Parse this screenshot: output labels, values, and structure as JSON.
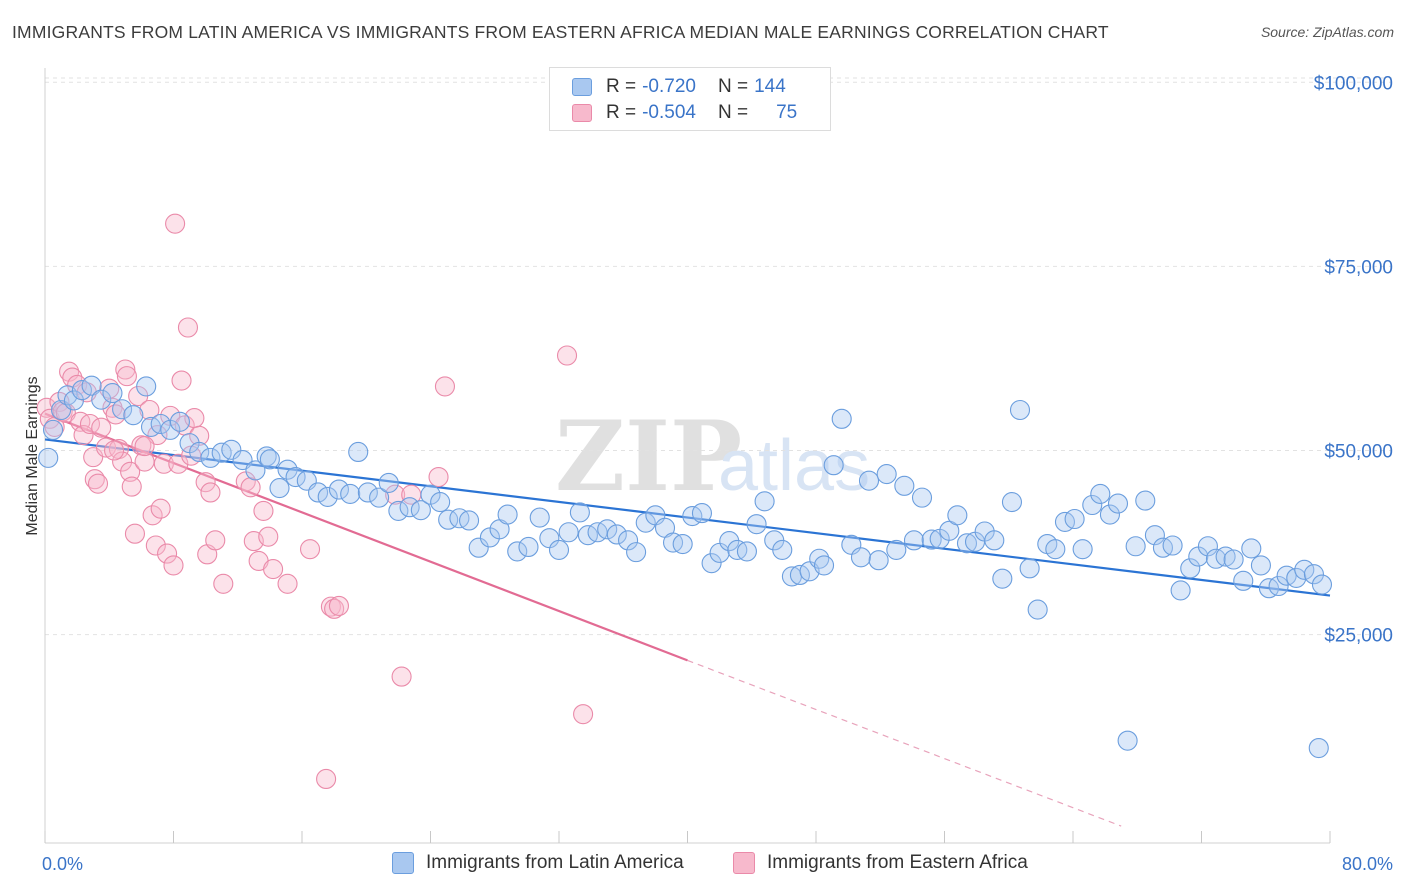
{
  "header": {
    "title": "IMMIGRANTS FROM LATIN AMERICA VS IMMIGRANTS FROM EASTERN AFRICA MEDIAN MALE EARNINGS CORRELATION CHART",
    "source": "Source: ZipAtlas.com"
  },
  "watermark": {
    "zip": "ZIP",
    "atlas": "atlas"
  },
  "legend": {
    "rows": [
      {
        "r_label": "R =",
        "r_value": "-0.720",
        "n_label": "N =",
        "n_value": "144",
        "color": "#a9c8f0",
        "border": "#6b9ede"
      },
      {
        "r_label": "R =",
        "r_value": "-0.504",
        "n_label": "N =",
        "n_value": "75",
        "color": "#f7b9cc",
        "border": "#ea8aa9"
      }
    ]
  },
  "bottom_legend": {
    "items": [
      {
        "label": "Immigrants from Latin America",
        "color": "#a9c8f0",
        "border": "#6b9ede"
      },
      {
        "label": "Immigrants from Eastern Africa",
        "color": "#f7b9cc",
        "border": "#ea8aa9"
      }
    ]
  },
  "chart_data": {
    "type": "scatter",
    "title": "IMMIGRANTS FROM LATIN AMERICA VS IMMIGRANTS FROM EASTERN AFRICA MEDIAN MALE EARNINGS CORRELATION CHART",
    "xlabel": "",
    "ylabel": "Median Male Earnings",
    "xlim": [
      0,
      80
    ],
    "ylim": [
      0,
      105000
    ],
    "x_tick_labels": [
      "0.0%",
      "80.0%"
    ],
    "y_ticks": [
      25000,
      50000,
      75000,
      100000
    ],
    "y_tick_labels": [
      "$25,000",
      "$50,000",
      "$75,000",
      "$100,000"
    ],
    "grid": true,
    "legend_position": "top-center",
    "series": [
      {
        "name": "Immigrants from Latin America",
        "color": "#6b9ede",
        "fill": "#a9c8f0",
        "r": -0.72,
        "n": 144,
        "trend": {
          "x": [
            0,
            80
          ],
          "y": [
            51500,
            30300
          ]
        },
        "points": [
          [
            0.2,
            49000
          ],
          [
            0.5,
            52800
          ],
          [
            1.0,
            55500
          ],
          [
            1.4,
            57500
          ],
          [
            1.8,
            56800
          ],
          [
            2.3,
            58200
          ],
          [
            2.9,
            58800
          ],
          [
            3.5,
            56900
          ],
          [
            4.2,
            57800
          ],
          [
            4.8,
            55600
          ],
          [
            5.5,
            54800
          ],
          [
            6.3,
            58700
          ],
          [
            6.6,
            53200
          ],
          [
            7.2,
            53600
          ],
          [
            7.8,
            52800
          ],
          [
            8.4,
            53900
          ],
          [
            9.0,
            51000
          ],
          [
            9.6,
            49800
          ],
          [
            10.3,
            49000
          ],
          [
            11.0,
            49700
          ],
          [
            11.6,
            50100
          ],
          [
            12.3,
            48700
          ],
          [
            13.1,
            47300
          ],
          [
            13.8,
            49200
          ],
          [
            14.0,
            48800
          ],
          [
            14.6,
            44900
          ],
          [
            15.1,
            47400
          ],
          [
            15.6,
            46400
          ],
          [
            16.3,
            45900
          ],
          [
            17.0,
            44300
          ],
          [
            17.6,
            43700
          ],
          [
            18.3,
            44700
          ],
          [
            19.0,
            44100
          ],
          [
            19.5,
            49800
          ],
          [
            20.1,
            44300
          ],
          [
            20.8,
            43600
          ],
          [
            21.4,
            45600
          ],
          [
            22.0,
            41800
          ],
          [
            22.7,
            42300
          ],
          [
            23.4,
            41900
          ],
          [
            24.0,
            44000
          ],
          [
            24.6,
            43000
          ],
          [
            25.1,
            40600
          ],
          [
            25.8,
            40800
          ],
          [
            26.4,
            40500
          ],
          [
            27.0,
            36800
          ],
          [
            27.7,
            38200
          ],
          [
            28.3,
            39300
          ],
          [
            28.8,
            41300
          ],
          [
            29.4,
            36300
          ],
          [
            30.1,
            36900
          ],
          [
            30.8,
            40900
          ],
          [
            31.4,
            38100
          ],
          [
            32.0,
            36500
          ],
          [
            32.6,
            38900
          ],
          [
            33.3,
            41600
          ],
          [
            33.8,
            38500
          ],
          [
            34.4,
            38900
          ],
          [
            35.0,
            39300
          ],
          [
            35.6,
            38600
          ],
          [
            36.3,
            37800
          ],
          [
            36.8,
            36200
          ],
          [
            37.4,
            40200
          ],
          [
            38.0,
            41200
          ],
          [
            38.6,
            39500
          ],
          [
            39.1,
            37500
          ],
          [
            39.7,
            37300
          ],
          [
            40.3,
            41100
          ],
          [
            40.9,
            41500
          ],
          [
            41.5,
            34700
          ],
          [
            42.0,
            36100
          ],
          [
            42.6,
            37700
          ],
          [
            43.1,
            36500
          ],
          [
            43.7,
            36300
          ],
          [
            44.3,
            40000
          ],
          [
            44.8,
            43100
          ],
          [
            45.4,
            37800
          ],
          [
            45.9,
            36500
          ],
          [
            46.5,
            32900
          ],
          [
            47.0,
            33100
          ],
          [
            47.6,
            33600
          ],
          [
            48.2,
            35300
          ],
          [
            48.5,
            34400
          ],
          [
            49.1,
            48000
          ],
          [
            49.6,
            54300
          ],
          [
            50.2,
            37200
          ],
          [
            50.8,
            35500
          ],
          [
            51.3,
            45900
          ],
          [
            51.9,
            35100
          ],
          [
            52.4,
            46800
          ],
          [
            53.0,
            36500
          ],
          [
            53.5,
            45200
          ],
          [
            54.1,
            37800
          ],
          [
            54.6,
            43600
          ],
          [
            55.2,
            37900
          ],
          [
            55.7,
            38000
          ],
          [
            56.3,
            39100
          ],
          [
            56.8,
            41200
          ],
          [
            57.4,
            37400
          ],
          [
            57.9,
            37600
          ],
          [
            58.5,
            39000
          ],
          [
            59.1,
            37800
          ],
          [
            59.6,
            32600
          ],
          [
            60.2,
            43000
          ],
          [
            60.7,
            55500
          ],
          [
            61.3,
            34000
          ],
          [
            61.8,
            28400
          ],
          [
            62.4,
            37300
          ],
          [
            62.9,
            36600
          ],
          [
            63.5,
            40300
          ],
          [
            64.1,
            40700
          ],
          [
            64.6,
            36600
          ],
          [
            65.2,
            42600
          ],
          [
            65.7,
            44100
          ],
          [
            66.3,
            41300
          ],
          [
            66.8,
            42800
          ],
          [
            67.4,
            10600
          ],
          [
            67.9,
            37000
          ],
          [
            68.5,
            43200
          ],
          [
            69.1,
            38500
          ],
          [
            69.6,
            36800
          ],
          [
            70.2,
            37100
          ],
          [
            70.7,
            31000
          ],
          [
            71.3,
            34000
          ],
          [
            71.8,
            35600
          ],
          [
            72.4,
            37000
          ],
          [
            72.9,
            35300
          ],
          [
            73.5,
            35600
          ],
          [
            74.0,
            35200
          ],
          [
            74.6,
            32300
          ],
          [
            75.1,
            36700
          ],
          [
            75.7,
            34400
          ],
          [
            76.2,
            31300
          ],
          [
            76.8,
            31600
          ],
          [
            77.3,
            33000
          ],
          [
            77.9,
            32700
          ],
          [
            78.4,
            33800
          ],
          [
            79.0,
            33200
          ],
          [
            79.3,
            9600
          ],
          [
            79.5,
            31800
          ]
        ]
      },
      {
        "name": "Immigrants from Eastern Africa",
        "color": "#ea8aa9",
        "fill": "#f7b9cc",
        "r": -0.504,
        "n": 75,
        "trend": {
          "x": [
            0,
            40
          ],
          "y": [
            55000,
            21500
          ]
        },
        "trend_extension": {
          "x": [
            40,
            67
          ],
          "y": [
            21500,
            -1000
          ]
        },
        "points": [
          [
            0.1,
            55800
          ],
          [
            0.3,
            54300
          ],
          [
            0.6,
            53200
          ],
          [
            0.9,
            56600
          ],
          [
            1.1,
            55300
          ],
          [
            1.3,
            55100
          ],
          [
            1.5,
            60700
          ],
          [
            1.7,
            59900
          ],
          [
            2.0,
            58900
          ],
          [
            2.2,
            53900
          ],
          [
            2.4,
            52100
          ],
          [
            2.6,
            57900
          ],
          [
            2.8,
            53600
          ],
          [
            3.0,
            49100
          ],
          [
            3.1,
            46100
          ],
          [
            3.3,
            45500
          ],
          [
            3.5,
            53100
          ],
          [
            3.8,
            50400
          ],
          [
            4.0,
            58400
          ],
          [
            4.2,
            55800
          ],
          [
            4.4,
            54900
          ],
          [
            4.6,
            50200
          ],
          [
            4.8,
            48500
          ],
          [
            5.0,
            61000
          ],
          [
            5.1,
            60100
          ],
          [
            5.3,
            47100
          ],
          [
            5.4,
            45100
          ],
          [
            5.6,
            38700
          ],
          [
            5.8,
            57400
          ],
          [
            6.0,
            50700
          ],
          [
            6.2,
            48500
          ],
          [
            6.5,
            55500
          ],
          [
            6.7,
            41200
          ],
          [
            6.9,
            37100
          ],
          [
            7.0,
            52100
          ],
          [
            7.2,
            42100
          ],
          [
            7.4,
            48200
          ],
          [
            7.6,
            36000
          ],
          [
            7.8,
            54700
          ],
          [
            8.0,
            34400
          ],
          [
            8.1,
            80800
          ],
          [
            8.3,
            48200
          ],
          [
            8.5,
            59500
          ],
          [
            8.7,
            53400
          ],
          [
            8.9,
            66700
          ],
          [
            9.1,
            49300
          ],
          [
            9.3,
            54400
          ],
          [
            9.6,
            52000
          ],
          [
            10.0,
            45700
          ],
          [
            10.1,
            35900
          ],
          [
            10.3,
            44300
          ],
          [
            10.6,
            37800
          ],
          [
            11.1,
            31900
          ],
          [
            12.5,
            45800
          ],
          [
            12.8,
            45000
          ],
          [
            13.0,
            37700
          ],
          [
            13.3,
            35000
          ],
          [
            13.6,
            41800
          ],
          [
            13.9,
            38300
          ],
          [
            14.2,
            33900
          ],
          [
            15.1,
            31900
          ],
          [
            16.5,
            36600
          ],
          [
            17.5,
            5400
          ],
          [
            17.8,
            28800
          ],
          [
            18.0,
            28500
          ],
          [
            18.3,
            28900
          ],
          [
            21.8,
            44000
          ],
          [
            22.2,
            19300
          ],
          [
            22.8,
            44000
          ],
          [
            24.5,
            46400
          ],
          [
            24.9,
            58700
          ],
          [
            32.5,
            62900
          ],
          [
            33.5,
            14200
          ],
          [
            4.3,
            50000
          ],
          [
            6.2,
            50600
          ]
        ]
      }
    ]
  }
}
